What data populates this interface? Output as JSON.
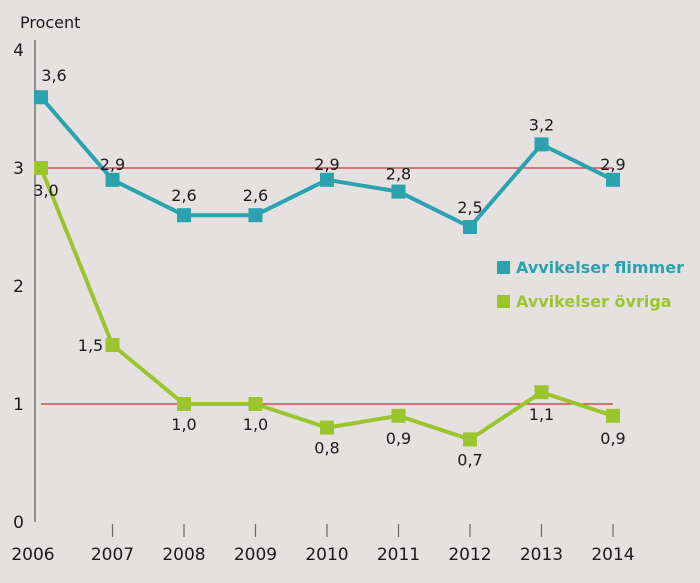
{
  "chart_data": {
    "type": "line",
    "title": "",
    "ylabel": "Procent",
    "xlabel": "",
    "ylim": [
      0,
      4
    ],
    "yticks": [
      "0",
      "1",
      "2",
      "3",
      "4"
    ],
    "x": [
      "2006",
      "2007",
      "2008",
      "2009",
      "2010",
      "2011",
      "2012",
      "2013",
      "2014"
    ],
    "reference_lines": [
      {
        "value": 3,
        "color": "#c8313a"
      },
      {
        "value": 1,
        "color": "#c8313a"
      }
    ],
    "series": [
      {
        "name": "Avvikelser flimmer",
        "color": "#2ba2ae",
        "values": [
          3.6,
          2.9,
          2.6,
          2.6,
          2.9,
          2.8,
          2.5,
          3.2,
          2.9
        ],
        "labels": [
          "3,6",
          "2,9",
          "2,6",
          "2,6",
          "2,9",
          "2,8",
          "2,5",
          "3,2",
          "2,9"
        ]
      },
      {
        "name": "Avvikelser övriga",
        "color": "#9cc42d",
        "values": [
          3.0,
          1.5,
          1.0,
          1.0,
          0.8,
          0.9,
          0.7,
          1.1,
          0.9
        ],
        "labels": [
          "3,0",
          "1,5",
          "1,0",
          "1,0",
          "0,8",
          "0,9",
          "0,7",
          "1,1",
          "0,9"
        ]
      }
    ],
    "legend": "right",
    "grid": false
  }
}
